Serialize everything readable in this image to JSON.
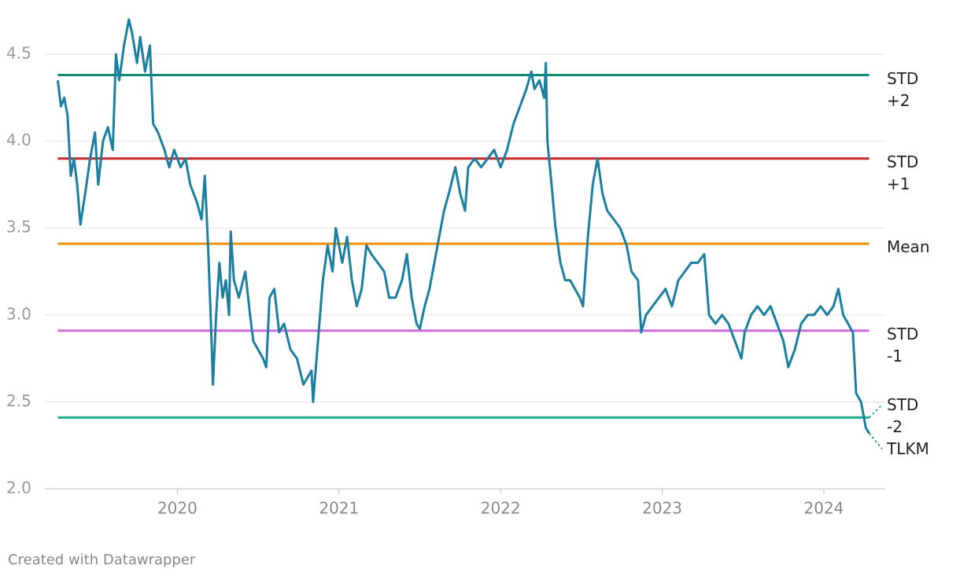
{
  "chart_data": {
    "type": "line",
    "x": [
      2019.26,
      2019.28,
      2019.3,
      2019.32,
      2019.34,
      2019.36,
      2019.38,
      2019.4,
      2019.43,
      2019.46,
      2019.49,
      2019.51,
      2019.54,
      2019.57,
      2019.6,
      2019.62,
      2019.64,
      2019.67,
      2019.7,
      2019.72,
      2019.75,
      2019.77,
      2019.8,
      2019.83,
      2019.85,
      2019.88,
      2019.92,
      2019.95,
      2019.98,
      2020.02,
      2020.05,
      2020.08,
      2020.12,
      2020.15,
      2020.17,
      2020.19,
      2020.21,
      2020.22,
      2020.24,
      2020.26,
      2020.28,
      2020.3,
      2020.32,
      2020.33,
      2020.35,
      2020.38,
      2020.42,
      2020.45,
      2020.47,
      2020.5,
      2020.53,
      2020.55,
      2020.57,
      2020.6,
      2020.63,
      2020.66,
      2020.7,
      2020.74,
      2020.78,
      2020.83,
      2020.84,
      2020.87,
      2020.9,
      2020.93,
      2020.96,
      2020.98,
      2021.02,
      2021.05,
      2021.08,
      2021.11,
      2021.14,
      2021.17,
      2021.2,
      2021.24,
      2021.28,
      2021.31,
      2021.35,
      2021.39,
      2021.42,
      2021.45,
      2021.48,
      2021.5,
      2021.53,
      2021.56,
      2021.59,
      2021.62,
      2021.65,
      2021.68,
      2021.72,
      2021.75,
      2021.78,
      2021.8,
      2021.84,
      2021.88,
      2021.92,
      2021.96,
      2022.0,
      2022.04,
      2022.08,
      2022.12,
      2022.16,
      2022.19,
      2022.21,
      2022.24,
      2022.27,
      2022.28,
      2022.29,
      2022.31,
      2022.34,
      2022.37,
      2022.4,
      2022.43,
      2022.46,
      2022.49,
      2022.51,
      2022.54,
      2022.57,
      2022.6,
      2022.63,
      2022.66,
      2022.7,
      2022.74,
      2022.78,
      2022.81,
      2022.85,
      2022.87,
      2022.9,
      2022.94,
      2022.98,
      2023.02,
      2023.06,
      2023.1,
      2023.14,
      2023.18,
      2023.22,
      2023.26,
      2023.29,
      2023.33,
      2023.37,
      2023.41,
      2023.45,
      2023.49,
      2023.51,
      2023.55,
      2023.59,
      2023.63,
      2023.67,
      2023.71,
      2023.75,
      2023.78,
      2023.82,
      2023.86,
      2023.9,
      2023.94,
      2023.98,
      2024.02,
      2024.06,
      2024.09,
      2024.12,
      2024.15,
      2024.18,
      2024.2,
      2024.23,
      2024.26,
      2024.28
    ],
    "series": [
      {
        "name": "TLKM",
        "color": "#1a7fa0",
        "values": [
          4.35,
          4.2,
          4.25,
          4.15,
          3.8,
          3.9,
          3.75,
          3.52,
          3.7,
          3.9,
          4.05,
          3.75,
          4.0,
          4.08,
          3.95,
          4.5,
          4.35,
          4.55,
          4.7,
          4.62,
          4.45,
          4.6,
          4.4,
          4.55,
          4.1,
          4.05,
          3.95,
          3.85,
          3.95,
          3.85,
          3.9,
          3.75,
          3.65,
          3.55,
          3.8,
          3.4,
          2.9,
          2.6,
          3.0,
          3.3,
          3.1,
          3.2,
          3.0,
          3.48,
          3.2,
          3.1,
          3.25,
          3.0,
          2.85,
          2.8,
          2.75,
          2.7,
          3.1,
          3.15,
          2.9,
          2.95,
          2.8,
          2.75,
          2.6,
          2.68,
          2.5,
          2.85,
          3.2,
          3.4,
          3.25,
          3.5,
          3.3,
          3.45,
          3.2,
          3.05,
          3.15,
          3.4,
          3.35,
          3.3,
          3.25,
          3.1,
          3.1,
          3.2,
          3.35,
          3.1,
          2.95,
          2.92,
          3.05,
          3.15,
          3.3,
          3.45,
          3.6,
          3.7,
          3.85,
          3.7,
          3.6,
          3.85,
          3.9,
          3.85,
          3.9,
          3.95,
          3.85,
          3.95,
          4.1,
          4.2,
          4.3,
          4.4,
          4.3,
          4.35,
          4.25,
          4.45,
          4.0,
          3.8,
          3.5,
          3.3,
          3.2,
          3.2,
          3.15,
          3.1,
          3.05,
          3.45,
          3.75,
          3.9,
          3.7,
          3.6,
          3.55,
          3.5,
          3.4,
          3.25,
          3.2,
          2.9,
          3.0,
          3.05,
          3.1,
          3.15,
          3.05,
          3.2,
          3.25,
          3.3,
          3.3,
          3.35,
          3.0,
          2.95,
          3.0,
          2.95,
          2.85,
          2.75,
          2.9,
          3.0,
          3.05,
          3.0,
          3.05,
          2.95,
          2.85,
          2.7,
          2.8,
          2.95,
          3.0,
          3.0,
          3.05,
          3.0,
          3.05,
          3.15,
          3.0,
          2.95,
          2.9,
          2.55,
          2.5,
          2.35,
          2.32
        ]
      }
    ],
    "reference_lines": [
      {
        "name": "STD +2",
        "value": 4.38,
        "color": "#0b8a74"
      },
      {
        "name": "STD +1",
        "value": 3.9,
        "color": "#c62828"
      },
      {
        "name": "Mean",
        "value": 3.41,
        "color": "#f0900f"
      },
      {
        "name": "STD -1",
        "value": 2.91,
        "color": "#d06ad8"
      },
      {
        "name": "STD -2",
        "value": 2.41,
        "color": "#1cae8e"
      }
    ],
    "xlim": [
      2019.18,
      2024.38
    ],
    "xticks": [
      2020,
      2021,
      2022,
      2023,
      2024
    ],
    "ylim": [
      2.0,
      4.75
    ],
    "yticks": [
      {
        "value": 2.0,
        "label": "2.0"
      },
      2.5,
      {
        "value": 3.0,
        "label": "3.0"
      },
      3.5,
      {
        "value": 4.0,
        "label": "4.0"
      },
      4.5
    ],
    "grid": true,
    "footer": "Created with Datawrapper"
  }
}
